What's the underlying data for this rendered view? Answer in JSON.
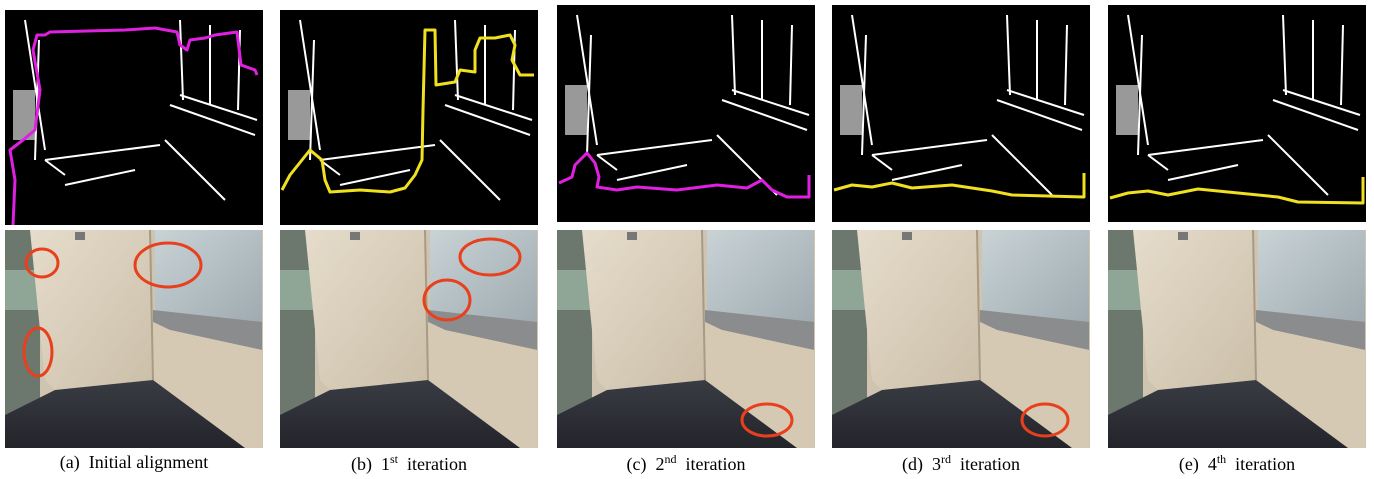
{
  "figure": {
    "panels": [
      {
        "label": "(a)",
        "caption": "Initial alignment"
      },
      {
        "label": "(b)",
        "number": "1",
        "suffix": "st",
        "caption": "iteration"
      },
      {
        "label": "(c)",
        "number": "2",
        "suffix": "nd",
        "caption": "iteration"
      },
      {
        "label": "(d)",
        "number": "3",
        "suffix": "rd",
        "caption": "iteration"
      },
      {
        "label": "(e)",
        "number": "4",
        "suffix": "th",
        "caption": "iteration"
      }
    ]
  }
}
